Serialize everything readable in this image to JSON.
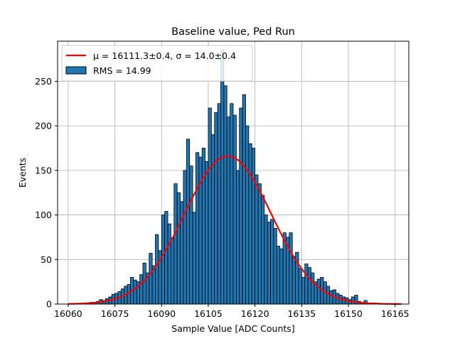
{
  "chart_data": {
    "type": "bar",
    "title": "Baseline value, Ped Run",
    "xlabel": "Sample Value [ADC Counts]",
    "ylabel": "Events",
    "xlim": [
      16056.6,
      16169.4
    ],
    "ylim": [
      0,
      295
    ],
    "xticks": [
      16060,
      16075,
      16090,
      16105,
      16120,
      16135,
      16150,
      16165
    ],
    "yticks": [
      0,
      50,
      100,
      150,
      200,
      250
    ],
    "grid": true,
    "legend_placement": "upper-left",
    "colors": {
      "bars": "#1f77b4",
      "bar_edge": "#000000",
      "fit": "#ff0000",
      "grid": "#b0b0b0"
    },
    "histogram": {
      "name": "RMS = 14.99",
      "x": [
        16060,
        16061,
        16062,
        16063,
        16064,
        16065,
        16066,
        16067,
        16068,
        16069,
        16070,
        16071,
        16072,
        16073,
        16074,
        16075,
        16076,
        16077,
        16078,
        16079,
        16080,
        16081,
        16082,
        16083,
        16084,
        16085,
        16086,
        16087,
        16088,
        16089,
        16090,
        16091,
        16092,
        16093,
        16094,
        16095,
        16096,
        16097,
        16098,
        16099,
        16100,
        16101,
        16102,
        16103,
        16104,
        16105,
        16106,
        16107,
        16108,
        16109,
        16110,
        16111,
        16112,
        16113,
        16114,
        16115,
        16116,
        16117,
        16118,
        16119,
        16120,
        16121,
        16122,
        16123,
        16124,
        16125,
        16126,
        16127,
        16128,
        16129,
        16130,
        16131,
        16132,
        16133,
        16134,
        16135,
        16136,
        16137,
        16138,
        16139,
        16140,
        16141,
        16142,
        16143,
        16144,
        16145,
        16146,
        16147,
        16148,
        16149,
        16150,
        16151,
        16152,
        16153,
        16154,
        16155,
        16156,
        16157,
        16158,
        16159,
        16160,
        16161,
        16162,
        16163,
        16164,
        16165,
        16166
      ],
      "values": [
        0,
        0,
        0,
        0,
        0,
        1,
        1,
        2,
        1,
        3,
        5,
        4,
        6,
        8,
        11,
        12,
        14,
        17,
        20,
        22,
        30,
        27,
        25,
        33,
        46,
        35,
        57,
        43,
        78,
        60,
        100,
        104,
        90,
        74,
        135,
        125,
        115,
        150,
        185,
        155,
        103,
        170,
        165,
        175,
        160,
        220,
        190,
        215,
        225,
        285,
        245,
        210,
        225,
        212,
        150,
        220,
        235,
        200,
        180,
        175,
        145,
        135,
        122,
        100,
        92,
        95,
        85,
        65,
        62,
        80,
        75,
        80,
        53,
        58,
        40,
        30,
        45,
        41,
        35,
        25,
        28,
        30,
        25,
        20,
        15,
        16,
        12,
        10,
        8,
        7,
        5,
        8,
        10,
        3,
        1,
        4,
        1,
        1,
        1,
        1,
        0,
        0,
        0,
        0,
        0,
        0,
        0
      ]
    },
    "fit": {
      "name": "μ = 16111.3±0.4, σ = 14.0±0.4",
      "mu": 16111.3,
      "sigma": 14.0,
      "amplitude": 166,
      "x_range": [
        16060,
        16167
      ]
    }
  }
}
